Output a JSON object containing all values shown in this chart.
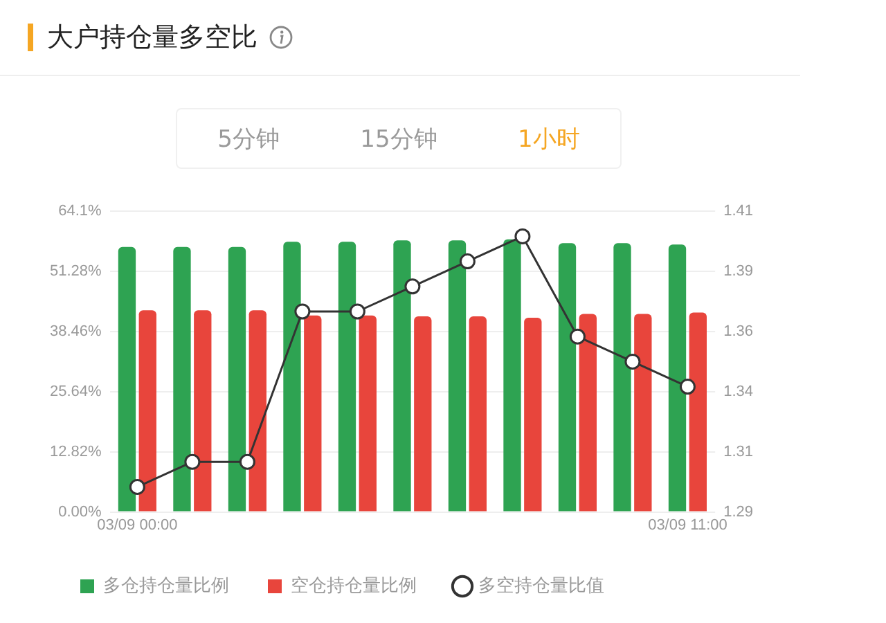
{
  "chart_data": {
    "type": "bar",
    "title": "大户持仓量多空比",
    "annotations": [
      "5分钟",
      "15分钟",
      "1小时"
    ],
    "categories": [
      "03/09 00:00",
      null,
      null,
      null,
      null,
      null,
      null,
      null,
      null,
      null,
      "03/09 11:00"
    ],
    "series": [
      {
        "name": "多仓持仓量比例",
        "color": "#2ea352",
        "values": [
          56.5,
          56.5,
          56.5,
          57.6,
          57.6,
          57.9,
          57.9,
          58.1,
          57.3,
          57.3,
          57.0
        ]
      },
      {
        "name": "空仓持仓量比例",
        "color": "#e8453c",
        "values": [
          43.0,
          43.0,
          43.0,
          41.9,
          41.9,
          41.7,
          41.7,
          41.4,
          42.2,
          42.2,
          42.5
        ]
      },
      {
        "name": "多空持仓量比值",
        "type": "line",
        "axis": "y2",
        "color": "#333333",
        "values": [
          1.3,
          1.31,
          1.31,
          1.37,
          1.37,
          1.38,
          1.39,
          1.4,
          1.36,
          1.35,
          1.34
        ]
      }
    ],
    "ylim": [
      0,
      64.1
    ],
    "yticks": [
      {
        "value": 0,
        "label": "0.00%"
      },
      {
        "value": 12.82,
        "label": "12.82%"
      },
      {
        "value": 25.64,
        "label": "25.64%"
      },
      {
        "value": 38.46,
        "label": "38.46%"
      },
      {
        "value": 51.28,
        "label": "51.28%"
      },
      {
        "value": 64.1,
        "label": "64.1%"
      }
    ],
    "y2lim": [
      1.29,
      1.41
    ],
    "y2ticks": [
      1.29,
      {
        "value": 1.314,
        "label": "1.31"
      },
      {
        "value": 1.338,
        "label": "1.34"
      },
      {
        "value": 1.362,
        "label": "1.36"
      },
      {
        "value": 1.386,
        "label": "1.39"
      },
      1.41
    ],
    "grid": "y",
    "legend": "bottom",
    "marker": "circle"
  }
}
